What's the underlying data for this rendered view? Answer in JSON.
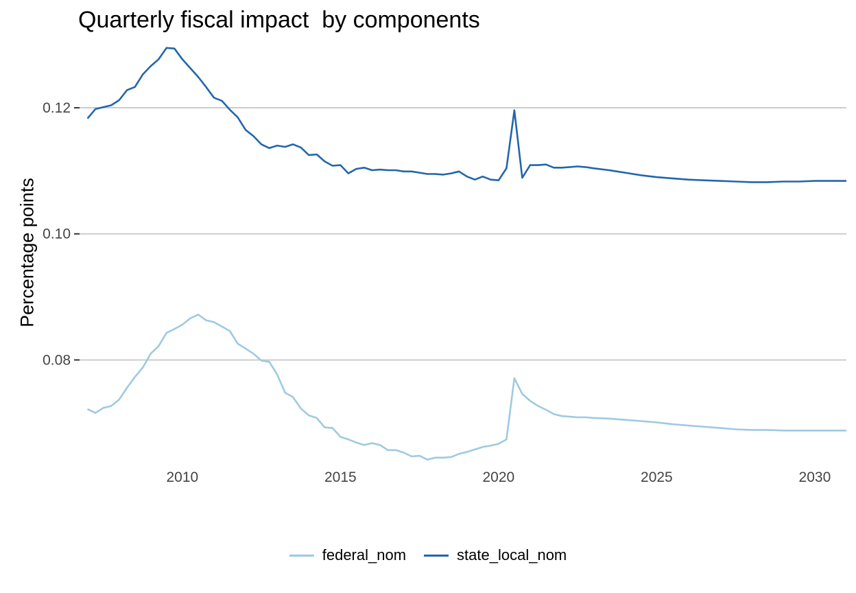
{
  "chart_data": {
    "type": "line",
    "title": "Quarterly fiscal impact  by components",
    "xlabel": "",
    "ylabel": "Percentage points",
    "xlim": [
      2006.75,
      2031
    ],
    "ylim": [
      0.0635,
      0.131
    ],
    "x_ticks": [
      2010,
      2015,
      2020,
      2025,
      2030
    ],
    "x_tick_labels": [
      "2010",
      "2015",
      "2020",
      "2025",
      "2030"
    ],
    "y_ticks": [
      0.08,
      0.1,
      0.12
    ],
    "y_tick_labels": [
      "0.08",
      "0.10",
      "0.12"
    ],
    "grid": "horizontal major only",
    "legend_position": "bottom",
    "colors": {
      "federal_nom": "#9ecae1",
      "state_local_nom": "#2166ac"
    },
    "series": [
      {
        "name": "federal_nom",
        "x": [
          2007,
          2007.25,
          2007.5,
          2007.75,
          2008,
          2008.25,
          2008.5,
          2008.75,
          2009,
          2009.25,
          2009.5,
          2009.75,
          2010,
          2010.25,
          2010.5,
          2010.75,
          2011,
          2011.25,
          2011.5,
          2011.75,
          2012,
          2012.25,
          2012.5,
          2012.75,
          2013,
          2013.25,
          2013.5,
          2013.75,
          2014,
          2014.25,
          2014.5,
          2014.75,
          2015,
          2015.25,
          2015.5,
          2015.75,
          2016,
          2016.25,
          2016.5,
          2016.75,
          2017,
          2017.25,
          2017.5,
          2017.75,
          2018,
          2018.25,
          2018.5,
          2018.75,
          2019,
          2019.25,
          2019.5,
          2019.75,
          2020,
          2020.25,
          2020.5,
          2020.75,
          2021,
          2021.25,
          2021.5,
          2021.75,
          2022,
          2022.25,
          2022.5,
          2022.75,
          2023,
          2023.5,
          2024,
          2024.5,
          2025,
          2025.5,
          2026,
          2026.5,
          2027,
          2027.5,
          2028,
          2028.5,
          2029,
          2029.5,
          2030,
          2030.5,
          2031
        ],
        "y": [
          0.0722,
          0.0716,
          0.0724,
          0.0727,
          0.0737,
          0.0756,
          0.0773,
          0.0788,
          0.081,
          0.0822,
          0.0843,
          0.0849,
          0.0856,
          0.0866,
          0.0872,
          0.0863,
          0.086,
          0.0853,
          0.0846,
          0.0826,
          0.0818,
          0.081,
          0.0799,
          0.0797,
          0.0777,
          0.0748,
          0.0741,
          0.0723,
          0.0712,
          0.0708,
          0.0693,
          0.0692,
          0.0678,
          0.0674,
          0.0669,
          0.0665,
          0.0668,
          0.0665,
          0.0657,
          0.0657,
          0.0653,
          0.0647,
          0.0648,
          0.0642,
          0.0645,
          0.0645,
          0.0646,
          0.0651,
          0.0654,
          0.0658,
          0.0662,
          0.0664,
          0.0667,
          0.0674,
          0.0771,
          0.0746,
          0.0735,
          0.0727,
          0.0721,
          0.0714,
          0.0711,
          0.071,
          0.0709,
          0.0709,
          0.0708,
          0.0707,
          0.0705,
          0.0703,
          0.0701,
          0.0698,
          0.0696,
          0.0694,
          0.0692,
          0.069,
          0.0689,
          0.0689,
          0.0688,
          0.0688,
          0.0688,
          0.0688,
          0.0688
        ]
      },
      {
        "name": "state_local_nom",
        "x": [
          2007,
          2007.25,
          2007.5,
          2007.75,
          2008,
          2008.25,
          2008.5,
          2008.75,
          2009,
          2009.25,
          2009.5,
          2009.75,
          2010,
          2010.25,
          2010.5,
          2010.75,
          2011,
          2011.25,
          2011.5,
          2011.75,
          2012,
          2012.25,
          2012.5,
          2012.75,
          2013,
          2013.25,
          2013.5,
          2013.75,
          2014,
          2014.25,
          2014.5,
          2014.75,
          2015,
          2015.25,
          2015.5,
          2015.75,
          2016,
          2016.25,
          2016.5,
          2016.75,
          2017,
          2017.25,
          2017.5,
          2017.75,
          2018,
          2018.25,
          2018.5,
          2018.75,
          2019,
          2019.25,
          2019.5,
          2019.75,
          2020,
          2020.25,
          2020.5,
          2020.75,
          2021,
          2021.25,
          2021.5,
          2021.75,
          2022,
          2022.25,
          2022.5,
          2022.75,
          2023,
          2023.5,
          2024,
          2024.5,
          2025,
          2025.5,
          2026,
          2026.5,
          2027,
          2027.5,
          2028,
          2028.5,
          2029,
          2029.5,
          2030,
          2030.5,
          2031
        ],
        "y": [
          0.1183,
          0.1198,
          0.1201,
          0.1204,
          0.1212,
          0.1228,
          0.1233,
          0.1253,
          0.1266,
          0.1277,
          0.1295,
          0.1294,
          0.1277,
          0.1263,
          0.1249,
          0.1233,
          0.1216,
          0.1211,
          0.1197,
          0.1185,
          0.1165,
          0.1155,
          0.1142,
          0.1136,
          0.114,
          0.1138,
          0.1142,
          0.1137,
          0.1125,
          0.1126,
          0.1115,
          0.1108,
          0.1109,
          0.1096,
          0.1103,
          0.1105,
          0.1101,
          0.1102,
          0.1101,
          0.1101,
          0.1099,
          0.1099,
          0.1097,
          0.1095,
          0.1095,
          0.1094,
          0.1096,
          0.1099,
          0.1091,
          0.1086,
          0.1091,
          0.1086,
          0.1085,
          0.1104,
          0.1196,
          0.1089,
          0.1109,
          0.1109,
          0.111,
          0.1105,
          0.1105,
          0.1106,
          0.1107,
          0.1106,
          0.1104,
          0.1101,
          0.1097,
          0.1093,
          0.109,
          0.1088,
          0.1086,
          0.1085,
          0.1084,
          0.1083,
          0.1082,
          0.1082,
          0.1083,
          0.1083,
          0.1084,
          0.1084,
          0.1084
        ]
      }
    ]
  }
}
